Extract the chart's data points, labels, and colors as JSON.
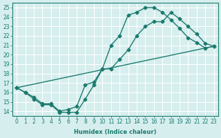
{
  "xlabel": "Humidex (Indice chaleur)",
  "ylabel": "",
  "bg_color": "#d6eeee",
  "grid_color": "#ffffff",
  "line_color": "#1a7a6e",
  "xlim": [
    -0.5,
    23.5
  ],
  "ylim": [
    13.5,
    25.5
  ],
  "xticks": [
    0,
    1,
    2,
    3,
    4,
    5,
    6,
    7,
    8,
    9,
    10,
    11,
    12,
    13,
    14,
    15,
    16,
    17,
    18,
    19,
    20,
    21,
    22,
    23
  ],
  "yticks": [
    14,
    15,
    16,
    17,
    18,
    19,
    20,
    21,
    22,
    23,
    24,
    25
  ],
  "line1_x": [
    0,
    1,
    2,
    3,
    4,
    5,
    6,
    7,
    8,
    9,
    10,
    11,
    12,
    13,
    14,
    15,
    16,
    17,
    18,
    19,
    20,
    21,
    22,
    23
  ],
  "line1_y": [
    16.5,
    16.0,
    15.3,
    14.7,
    14.7,
    13.9,
    13.9,
    13.9,
    15.3,
    16.8,
    18.5,
    21.0,
    22.0,
    24.2,
    24.5,
    25.0,
    25.0,
    24.5,
    23.7,
    22.8,
    21.8,
    21.3,
    20.7,
    20.9
  ],
  "line2_x": [
    0,
    1,
    2,
    3,
    4,
    5,
    6,
    7,
    8,
    9,
    10,
    11,
    12,
    13,
    14,
    15,
    16,
    17,
    18,
    19,
    20,
    21,
    22,
    23
  ],
  "line2_y": [
    16.5,
    16.0,
    15.5,
    14.8,
    14.8,
    14.0,
    14.2,
    14.5,
    16.8,
    17.1,
    18.5,
    18.5,
    19.5,
    20.5,
    22.0,
    23.0,
    23.5,
    23.5,
    24.5,
    23.8,
    23.0,
    22.2,
    21.2,
    20.9
  ],
  "line3_x": [
    0,
    23
  ],
  "line3_y": [
    16.5,
    20.9
  ]
}
